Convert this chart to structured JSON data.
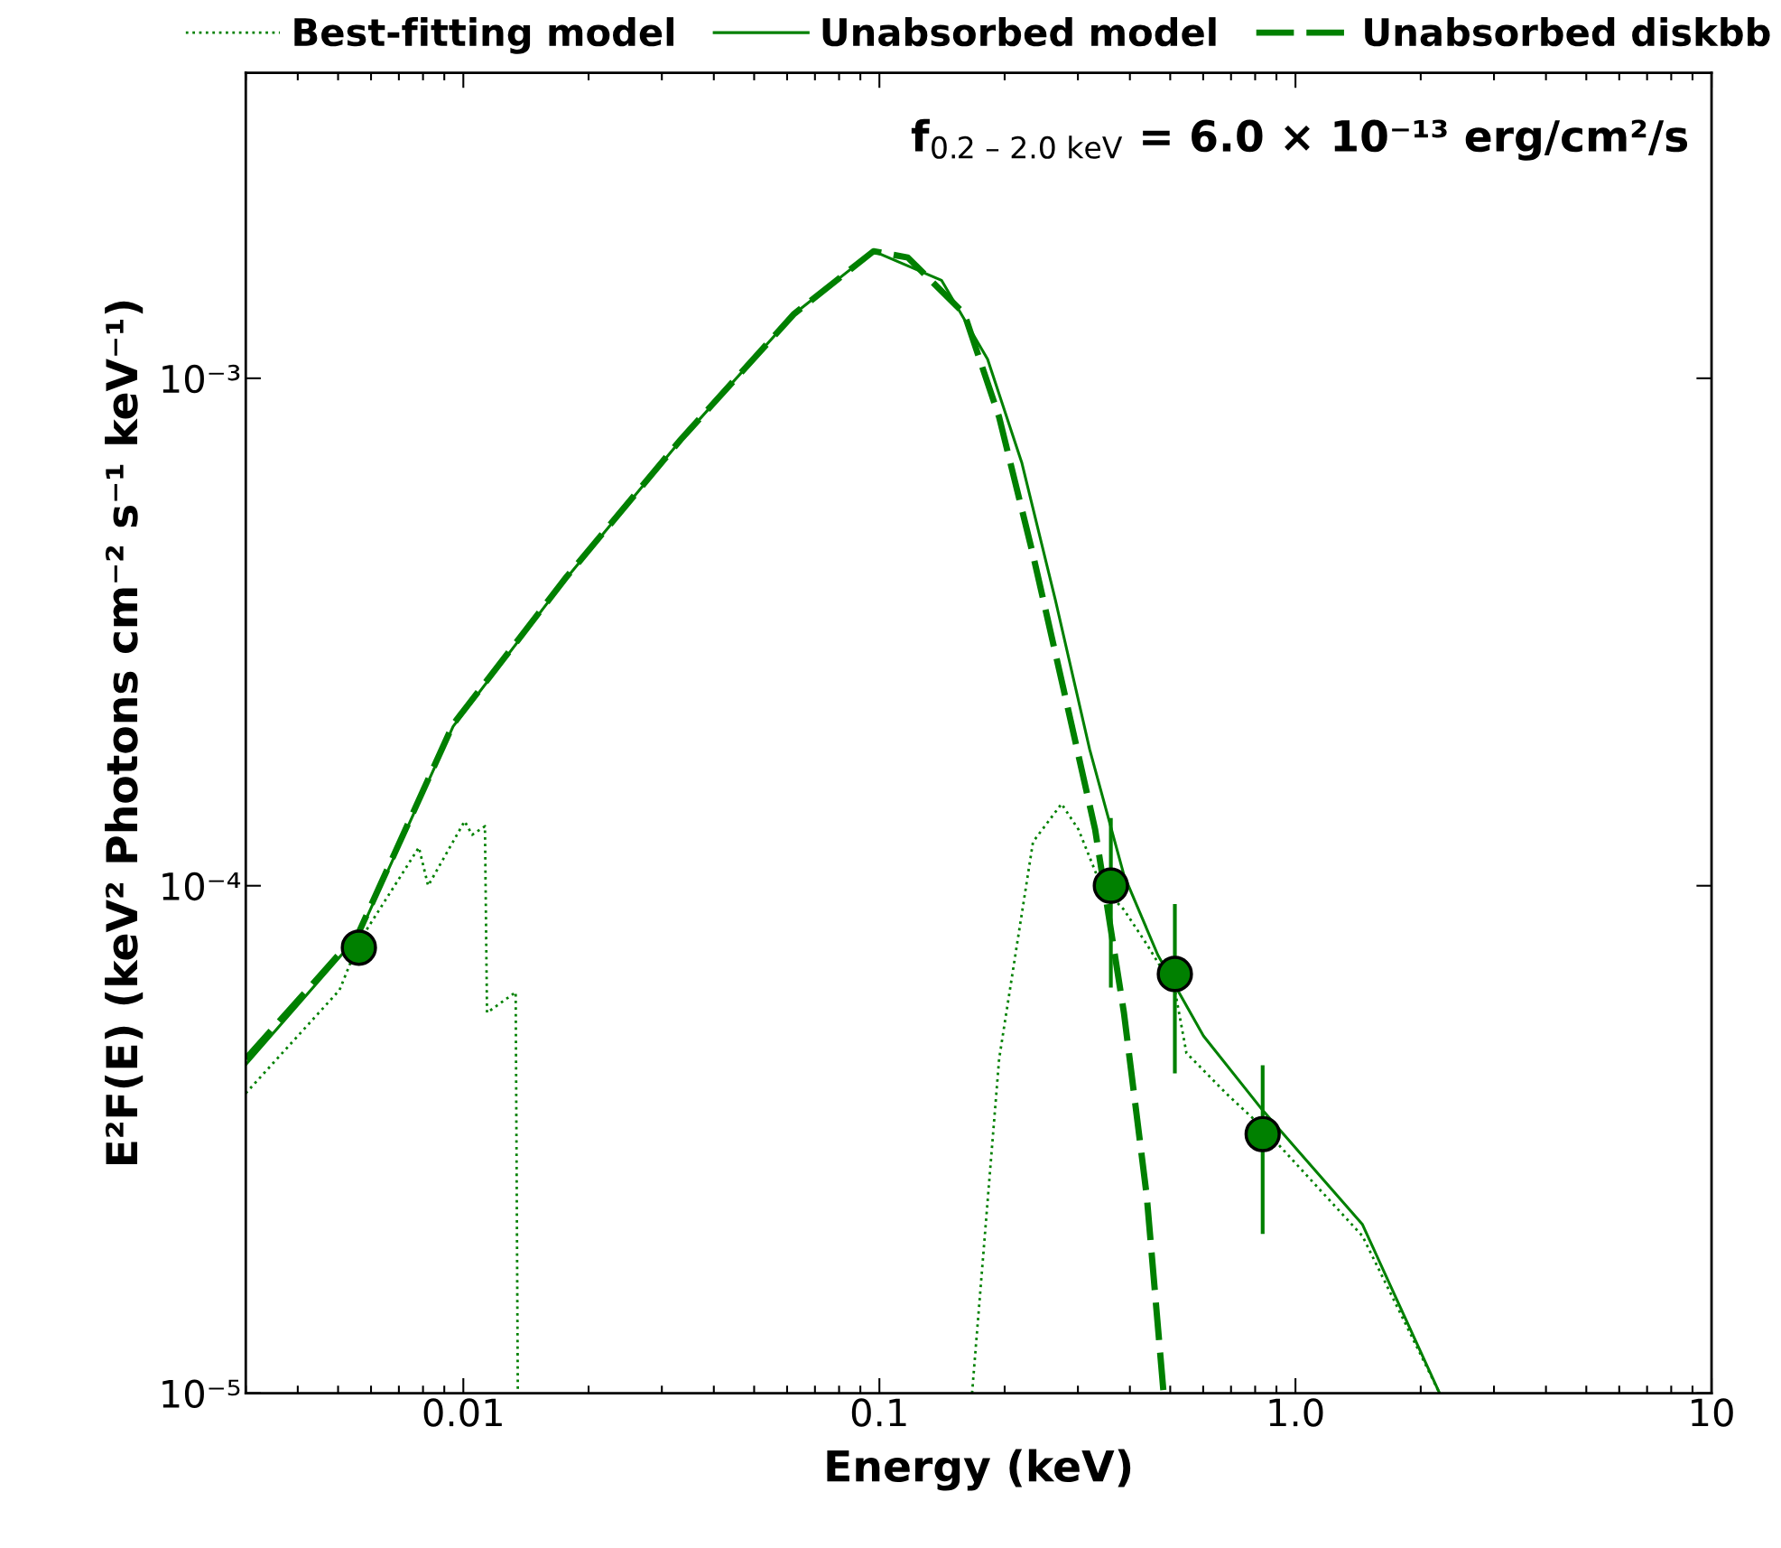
{
  "chart_data": {
    "type": "line",
    "xlabel": "Energy (keV)",
    "ylabel": "E²F(E) (keV² Photons cm⁻² s⁻¹ keV⁻¹)",
    "log": "xy",
    "legend": "top",
    "grid": false,
    "xlim": [
      0.003,
      10
    ],
    "xticks": [
      {
        "value": 0.01,
        "label": "0.01"
      },
      {
        "value": 0.1,
        "label": "0.1"
      },
      {
        "value": 1,
        "label": "1.0"
      },
      {
        "value": 10,
        "label": "10"
      }
    ],
    "ylim": [
      1e-05,
      0.004
    ],
    "yticks": [
      {
        "value": 1e-05,
        "label": "10⁻⁵"
      },
      {
        "value": 0.0001,
        "label": "10⁻⁴"
      },
      {
        "value": 0.001,
        "label": "10⁻³"
      }
    ],
    "annotations": [
      "f$_{0.2 – 2.0 keV}$ = 6.0 × 10⁻¹³ erg/cm²/s"
    ],
    "series": [
      {
        "name": "Best-fitting model",
        "type": "line",
        "line_style": "dotted",
        "color": "#008000",
        "x": [
          0.003,
          0.00504,
          0.00561,
          0.00782,
          0.00823,
          0.01007,
          0.0105,
          0.01127,
          0.0114,
          0.01336,
          0.01352,
          0.1,
          0.167,
          0.194,
          0.234,
          0.274,
          0.301,
          0.341,
          0.387,
          0.439,
          0.513,
          0.547,
          0.681,
          0.834,
          1.449,
          2.22
        ],
        "values": [
          3.9e-05,
          6.23e-05,
          7.75e-05,
          0.000119,
          0.0001,
          0.000134,
          0.000126,
          0.000131,
          5.62e-05,
          6.17e-05,
          1e-05,
          null,
          1e-05,
          4.56e-05,
          0.000122,
          0.000145,
          0.000129,
          0.0001,
          8.97e-05,
          7.67e-05,
          6.23e-05,
          4.68e-05,
          3.9e-05,
          3.34e-05,
          2.04e-05,
          1e-05
        ]
      },
      {
        "name": "Unabsorbed model",
        "type": "line",
        "line_style": "solid",
        "color": "#008000",
        "x": [
          0.003,
          0.00561,
          0.00945,
          0.01774,
          0.0333,
          0.0624,
          0.0968,
          0.141,
          0.182,
          0.22,
          0.265,
          0.32,
          0.387,
          0.467,
          0.601,
          0.834,
          1.449,
          2.22
        ],
        "values": [
          4.44e-05,
          8e-05,
          0.000206,
          0.000405,
          0.000755,
          0.00134,
          0.00178,
          0.00156,
          0.00109,
          0.000681,
          0.000365,
          0.000186,
          0.000105,
          7.3e-05,
          5.06e-05,
          3.61e-05,
          2.15e-05,
          1e-05
        ]
      },
      {
        "name": "Unabsorbed diskbb",
        "type": "line",
        "line_style": "dashed",
        "color": "#008000",
        "x": [
          0.003,
          0.00561,
          0.00945,
          0.01774,
          0.0333,
          0.0624,
          0.0968,
          0.117,
          0.16,
          0.194,
          0.234,
          0.282,
          0.33,
          0.387,
          0.439,
          0.482
        ],
        "values": [
          4.56e-05,
          8.1e-05,
          0.000208,
          0.000407,
          0.000757,
          0.00134,
          0.00178,
          0.00173,
          0.00134,
          0.000838,
          0.000449,
          0.000229,
          0.000129,
          5.62e-05,
          2.45e-05,
          1e-05
        ]
      },
      {
        "type": "scatter",
        "marker": "circle",
        "color": "#008000",
        "x": [
          0.00561,
          0.36,
          0.513,
          0.834
        ],
        "values": [
          7.55e-05,
          0.0001,
          6.7e-05,
          3.24e-05
        ],
        "errors": [
          null,
          [
            6.3e-05,
            0.000136
          ],
          [
            4.27e-05,
            9.2e-05
          ],
          [
            2.06e-05,
            4.43e-05
          ]
        ]
      }
    ]
  }
}
